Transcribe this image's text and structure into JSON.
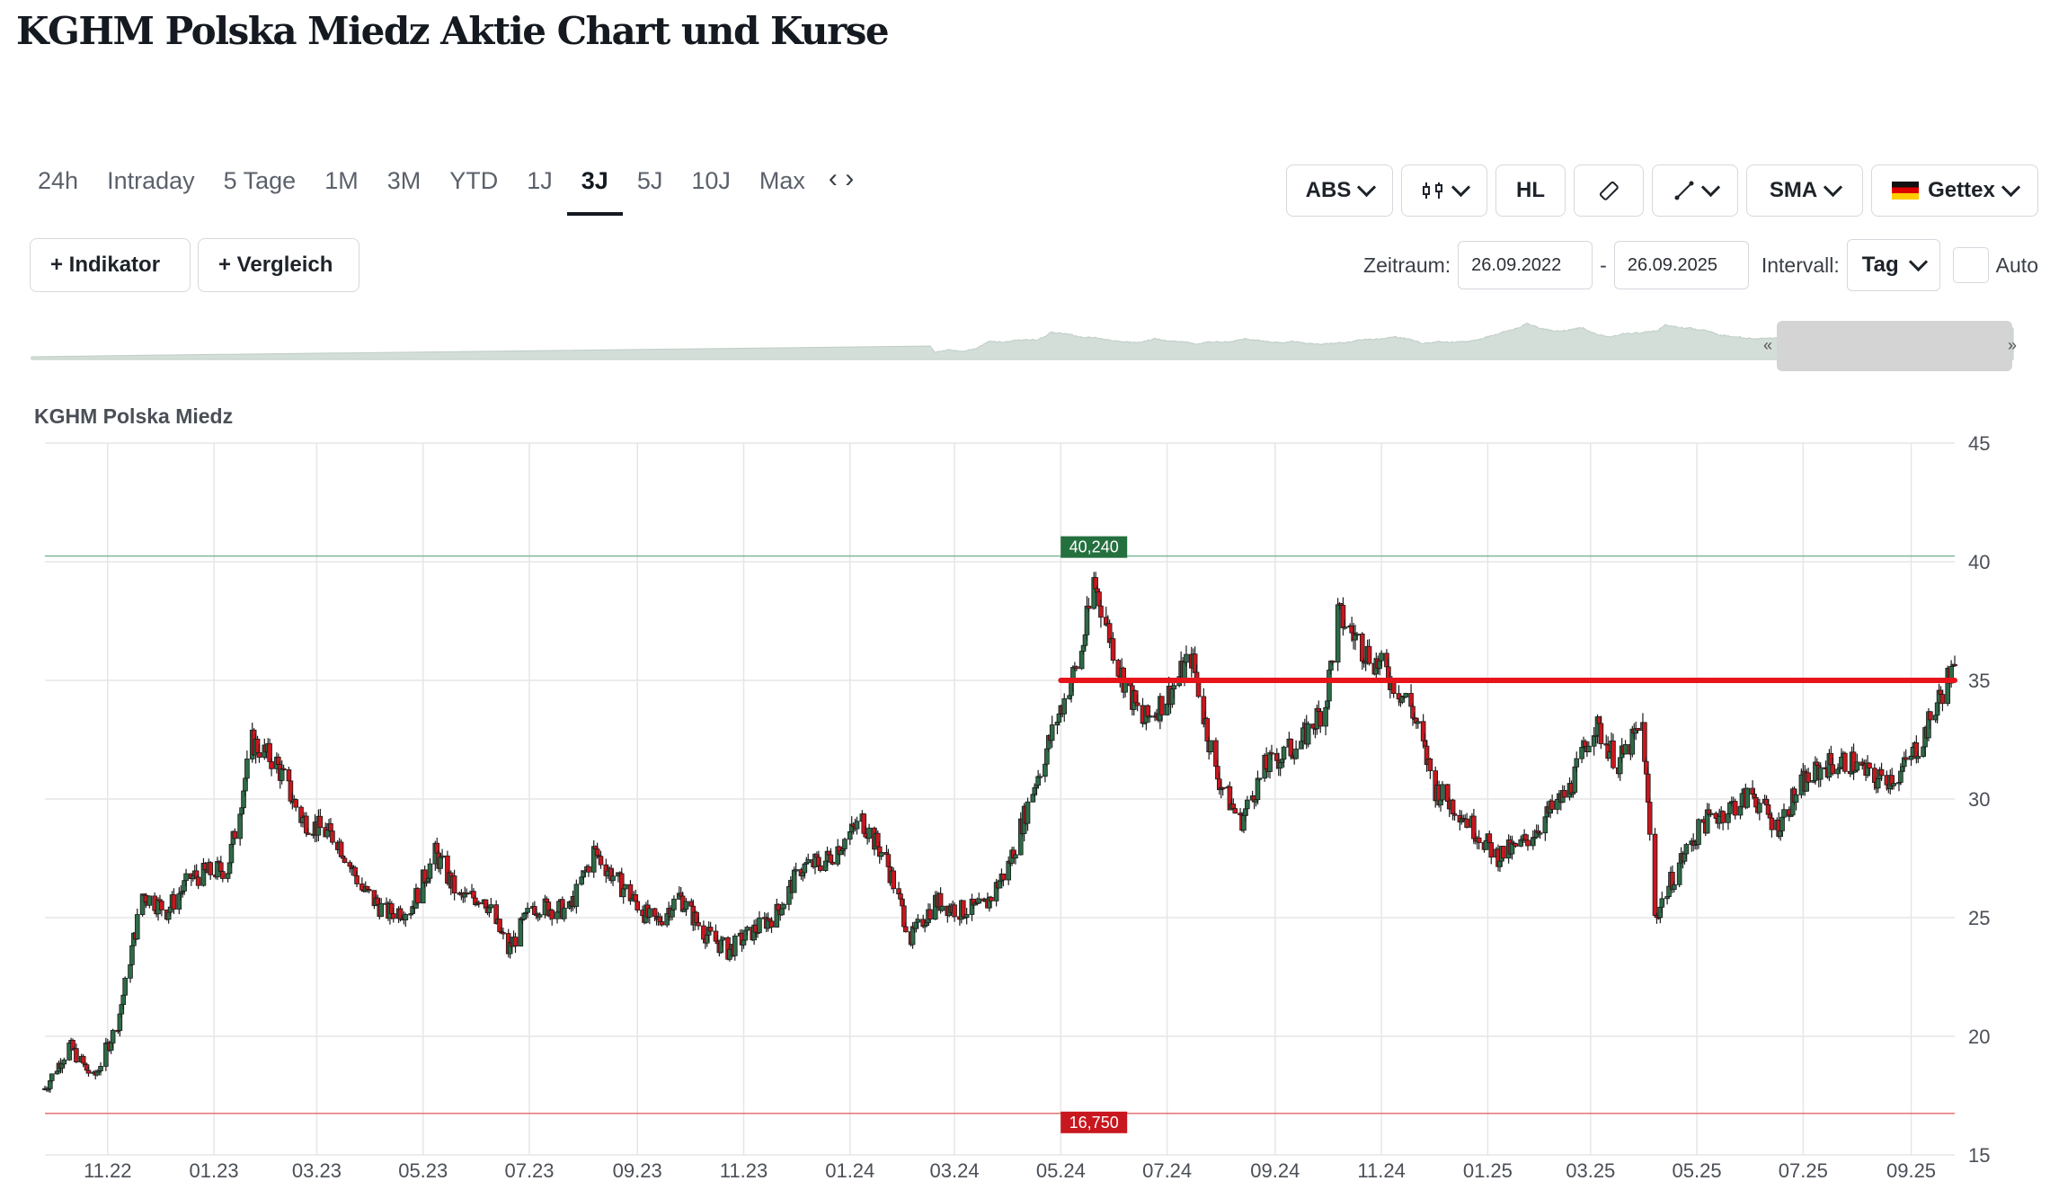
{
  "page": {
    "title": "KGHM Polska Miedz Aktie Chart und Kurse"
  },
  "tabs": [
    {
      "label": "24h"
    },
    {
      "label": "Intraday"
    },
    {
      "label": "5 Tage"
    },
    {
      "label": "1M"
    },
    {
      "label": "3M"
    },
    {
      "label": "YTD"
    },
    {
      "label": "1J"
    },
    {
      "label": "3J",
      "active": true
    },
    {
      "label": "5J"
    },
    {
      "label": "10J"
    },
    {
      "label": "Max"
    }
  ],
  "toolbar": {
    "abs_label": "ABS",
    "hl_label": "HL",
    "sma_label": "SMA",
    "exchange_label": "Gettex",
    "exchange_flag": "de-flag-icon"
  },
  "options": {
    "indikator_label": "+ Indikator",
    "vergleich_label": "+ Vergleich"
  },
  "range": {
    "zeitraum_label": "Zeitraum:",
    "from": "26.09.2022",
    "separator": "-",
    "to": "26.09.2025",
    "intervall_label": "Intervall:",
    "intervall_value": "Tag",
    "auto_label": "Auto"
  },
  "chart_data": {
    "type": "candlestick",
    "title": "KGHM Polska Miedz",
    "x_tick_labels": [
      "11.22",
      "01.23",
      "03.23",
      "05.23",
      "07.23",
      "09.23",
      "11.23",
      "01.24",
      "03.24",
      "05.24",
      "07.24",
      "09.24",
      "11.24",
      "01.25",
      "03.25",
      "05.25",
      "07.25",
      "09.25"
    ],
    "y_ticks": [
      15,
      20,
      25,
      30,
      35,
      40,
      45
    ],
    "ylim": [
      15,
      45
    ],
    "x_range": [
      "2022-09-26",
      "2025-09-26"
    ],
    "grid": true,
    "colors": {
      "up": "#2e6b47",
      "down": "#c8171e",
      "high_line": "#7fb79a",
      "low_line": "#e57373",
      "trendline": "#e8141b"
    },
    "high_marker": {
      "value": 40.24,
      "label": "40,240",
      "date": "2024-05-20"
    },
    "low_marker": {
      "value": 16.75,
      "label": "16,750",
      "date": "2022-10-03"
    },
    "trendline": {
      "value": 35.0,
      "from": "2024-05-01",
      "to": "2025-09-26"
    },
    "close_series": [
      {
        "date": "2022-09-26",
        "close": 17.8
      },
      {
        "date": "2022-10-10",
        "close": 19.6
      },
      {
        "date": "2022-10-24",
        "close": 18.2
      },
      {
        "date": "2022-11-07",
        "close": 20.6
      },
      {
        "date": "2022-11-21",
        "close": 26.0
      },
      {
        "date": "2022-12-05",
        "close": 25.3
      },
      {
        "date": "2022-12-19",
        "close": 26.7
      },
      {
        "date": "2023-01-09",
        "close": 27.1
      },
      {
        "date": "2023-01-23",
        "close": 32.4
      },
      {
        "date": "2023-02-06",
        "close": 31.5
      },
      {
        "date": "2023-02-20",
        "close": 29.2
      },
      {
        "date": "2023-03-13",
        "close": 28.3
      },
      {
        "date": "2023-03-27",
        "close": 26.2
      },
      {
        "date": "2023-04-10",
        "close": 25.2
      },
      {
        "date": "2023-04-24",
        "close": 25.4
      },
      {
        "date": "2023-05-08",
        "close": 27.7
      },
      {
        "date": "2023-05-22",
        "close": 25.8
      },
      {
        "date": "2023-06-05",
        "close": 25.9
      },
      {
        "date": "2023-06-19",
        "close": 23.6
      },
      {
        "date": "2023-07-03",
        "close": 25.5
      },
      {
        "date": "2023-07-24",
        "close": 25.3
      },
      {
        "date": "2023-08-07",
        "close": 27.8
      },
      {
        "date": "2023-08-21",
        "close": 26.5
      },
      {
        "date": "2023-09-11",
        "close": 24.7
      },
      {
        "date": "2023-09-25",
        "close": 25.9
      },
      {
        "date": "2023-10-09",
        "close": 24.4
      },
      {
        "date": "2023-10-23",
        "close": 23.6
      },
      {
        "date": "2023-11-06",
        "close": 24.4
      },
      {
        "date": "2023-11-20",
        "close": 25.2
      },
      {
        "date": "2023-12-04",
        "close": 27.1
      },
      {
        "date": "2023-12-18",
        "close": 27.4
      },
      {
        "date": "2024-01-08",
        "close": 29.1
      },
      {
        "date": "2024-01-22",
        "close": 27.4
      },
      {
        "date": "2024-02-05",
        "close": 24.1
      },
      {
        "date": "2024-02-19",
        "close": 25.7
      },
      {
        "date": "2024-03-04",
        "close": 25.3
      },
      {
        "date": "2024-03-18",
        "close": 25.4
      },
      {
        "date": "2024-04-01",
        "close": 27.2
      },
      {
        "date": "2024-04-15",
        "close": 30.4
      },
      {
        "date": "2024-04-29",
        "close": 33.4
      },
      {
        "date": "2024-05-13",
        "close": 36.2
      },
      {
        "date": "2024-05-20",
        "close": 39.2
      },
      {
        "date": "2024-06-03",
        "close": 35.6
      },
      {
        "date": "2024-06-17",
        "close": 33.2
      },
      {
        "date": "2024-07-01",
        "close": 34.3
      },
      {
        "date": "2024-07-15",
        "close": 36.0
      },
      {
        "date": "2024-07-29",
        "close": 31.1
      },
      {
        "date": "2024-08-12",
        "close": 29.0
      },
      {
        "date": "2024-08-26",
        "close": 31.3
      },
      {
        "date": "2024-09-16",
        "close": 32.4
      },
      {
        "date": "2024-09-30",
        "close": 34.0
      },
      {
        "date": "2024-10-07",
        "close": 37.8
      },
      {
        "date": "2024-10-21",
        "close": 36.4
      },
      {
        "date": "2024-11-04",
        "close": 35.3
      },
      {
        "date": "2024-11-18",
        "close": 33.9
      },
      {
        "date": "2024-12-02",
        "close": 30.4
      },
      {
        "date": "2024-12-16",
        "close": 29.5
      },
      {
        "date": "2025-01-06",
        "close": 27.6
      },
      {
        "date": "2025-01-20",
        "close": 28.0
      },
      {
        "date": "2025-02-03",
        "close": 29.2
      },
      {
        "date": "2025-02-17",
        "close": 30.4
      },
      {
        "date": "2025-03-03",
        "close": 33.2
      },
      {
        "date": "2025-03-17",
        "close": 31.5
      },
      {
        "date": "2025-03-31",
        "close": 33.1
      },
      {
        "date": "2025-04-07",
        "close": 25.0
      },
      {
        "date": "2025-04-21",
        "close": 27.3
      },
      {
        "date": "2025-05-05",
        "close": 29.0
      },
      {
        "date": "2025-05-19",
        "close": 29.6
      },
      {
        "date": "2025-06-02",
        "close": 30.2
      },
      {
        "date": "2025-06-16",
        "close": 28.8
      },
      {
        "date": "2025-06-30",
        "close": 30.6
      },
      {
        "date": "2025-07-14",
        "close": 31.4
      },
      {
        "date": "2025-07-28",
        "close": 31.6
      },
      {
        "date": "2025-08-11",
        "close": 30.8
      },
      {
        "date": "2025-08-25",
        "close": 31.0
      },
      {
        "date": "2025-09-08",
        "close": 32.6
      },
      {
        "date": "2025-09-22",
        "close": 35.1
      },
      {
        "date": "2025-09-26",
        "close": 35.3
      }
    ]
  }
}
